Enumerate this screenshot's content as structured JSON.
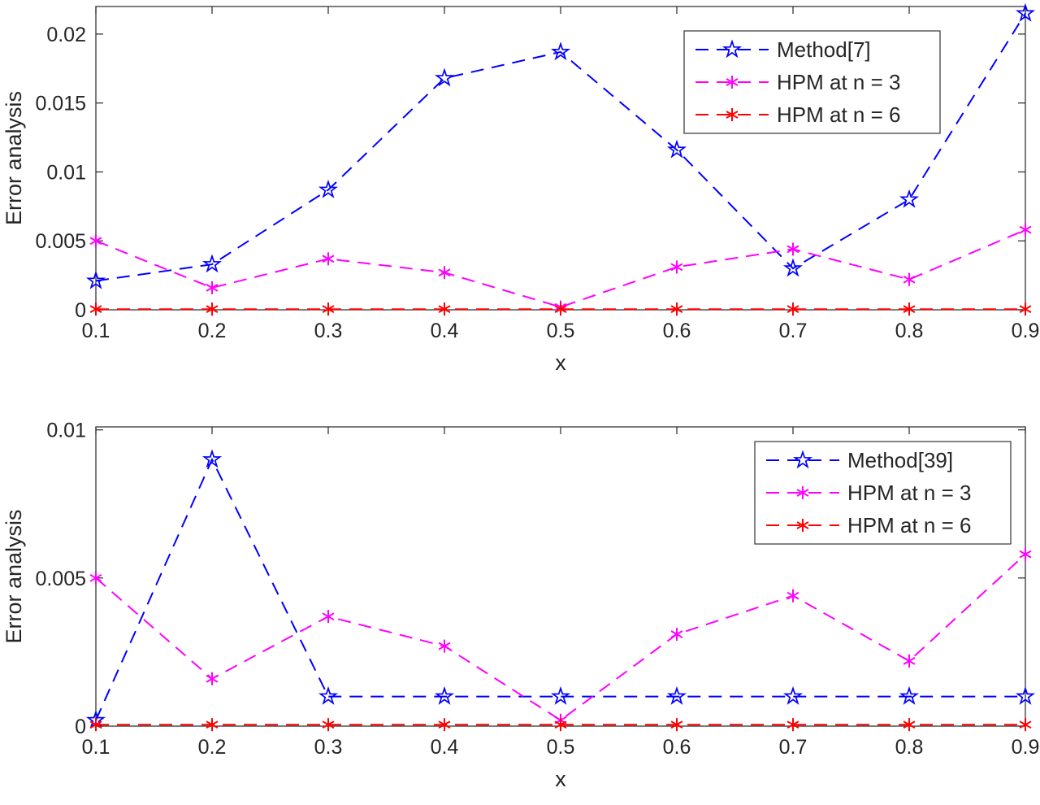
{
  "figure": {
    "background": "#ffffff"
  },
  "style": {
    "axis_color": "#262626",
    "text_color": "#262626",
    "legend_border_color": "#333333",
    "tick_font_size": 25,
    "label_font_size": 27,
    "legend_font_size": 26
  },
  "chart_data": [
    {
      "type": "line",
      "title": "",
      "xlabel": "x",
      "ylabel": "Error analysis",
      "xlim": [
        0.1,
        0.9
      ],
      "ylim": [
        0,
        0.022
      ],
      "grid": false,
      "legend_position": "northeast-inside",
      "x": [
        0.1,
        0.2,
        0.3,
        0.4,
        0.5,
        0.6,
        0.7,
        0.8,
        0.9
      ],
      "xtick_labels": [
        "0.1",
        "0.2",
        "0.3",
        "0.4",
        "0.5",
        "0.6",
        "0.7",
        "0.8",
        "0.9"
      ],
      "yticks": [
        0,
        0.005,
        0.01,
        0.015,
        0.02
      ],
      "ytick_labels": [
        "0",
        "0.005",
        "0.01",
        "0.015",
        "0.02"
      ],
      "series": [
        {
          "name": "Method[7]",
          "color": "#0000ff",
          "marker": "pentagram",
          "linestyle": "dashed",
          "values": [
            0.0021,
            0.0033,
            0.0087,
            0.0168,
            0.0187,
            0.0116,
            0.003,
            0.008,
            0.0215
          ]
        },
        {
          "name": "HPM at n = 3",
          "color": "#ff00ff",
          "marker": "asterisk",
          "linestyle": "dashed",
          "values": [
            0.005,
            0.0016,
            0.0037,
            0.0027,
            0.0002,
            0.0031,
            0.0044,
            0.0022,
            0.0058
          ]
        },
        {
          "name": "HPM at n = 6",
          "color": "#ff0000",
          "marker": "asterisk",
          "linestyle": "dashed",
          "values": [
            5e-05,
            5e-05,
            5e-05,
            5e-05,
            5e-05,
            5e-05,
            5e-05,
            5e-05,
            5e-05
          ]
        }
      ]
    },
    {
      "type": "line",
      "title": "",
      "xlabel": "x",
      "ylabel": "Error analysis",
      "xlim": [
        0.1,
        0.9
      ],
      "ylim": [
        0,
        0.0101
      ],
      "grid": false,
      "legend_position": "northeast-inside",
      "x": [
        0.1,
        0.2,
        0.3,
        0.4,
        0.5,
        0.6,
        0.7,
        0.8,
        0.9
      ],
      "xtick_labels": [
        "0.1",
        "0.2",
        "0.3",
        "0.4",
        "0.5",
        "0.6",
        "0.7",
        "0.8",
        "0.9"
      ],
      "yticks": [
        0,
        0.005,
        0.01
      ],
      "ytick_labels": [
        "0",
        "0.005",
        "0.01"
      ],
      "series": [
        {
          "name": "Method[39]",
          "color": "#0000ff",
          "marker": "pentagram",
          "linestyle": "dashed",
          "values": [
            0.0002,
            0.009,
            0.001,
            0.001,
            0.001,
            0.001,
            0.001,
            0.001,
            0.001
          ]
        },
        {
          "name": "HPM at n = 3",
          "color": "#ff00ff",
          "marker": "asterisk",
          "linestyle": "dashed",
          "values": [
            0.005,
            0.0016,
            0.0037,
            0.0027,
            0.0002,
            0.0031,
            0.0044,
            0.0022,
            0.0058
          ]
        },
        {
          "name": "HPM at n = 6",
          "color": "#ff0000",
          "marker": "asterisk",
          "linestyle": "dashed",
          "values": [
            5e-05,
            5e-05,
            5e-05,
            5e-05,
            5e-05,
            5e-05,
            5e-05,
            5e-05,
            5e-05
          ]
        }
      ]
    }
  ]
}
